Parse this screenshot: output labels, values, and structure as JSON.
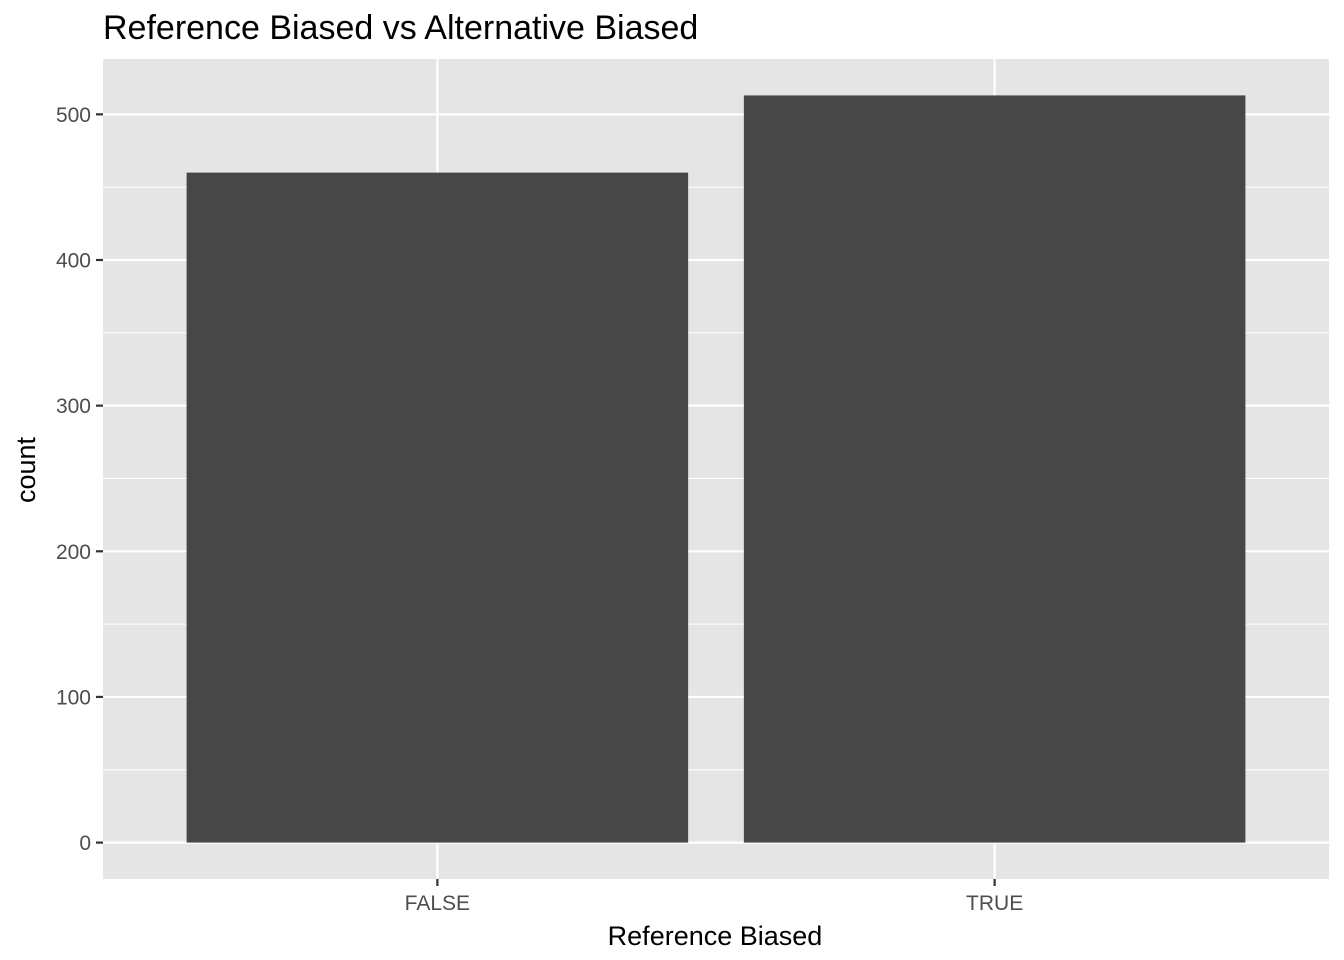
{
  "chart_data": {
    "type": "bar",
    "title": "Reference Biased vs Alternative Biased",
    "xlabel": "Reference Biased",
    "ylabel": "count",
    "categories": [
      "FALSE",
      "TRUE"
    ],
    "values": [
      460,
      513
    ],
    "ylim": [
      -25,
      538
    ],
    "yticks": [
      0,
      100,
      200,
      300,
      400,
      500
    ],
    "ytick_labels": [
      "0",
      "100",
      "200",
      "300",
      "400",
      "500"
    ],
    "grid": true,
    "legend": "none",
    "colors": {
      "bar": "#474747",
      "panel": "#e5e5e5",
      "grid": "#ffffff",
      "tick_text": "#4d4d4d",
      "tick_mark": "#333333"
    }
  }
}
